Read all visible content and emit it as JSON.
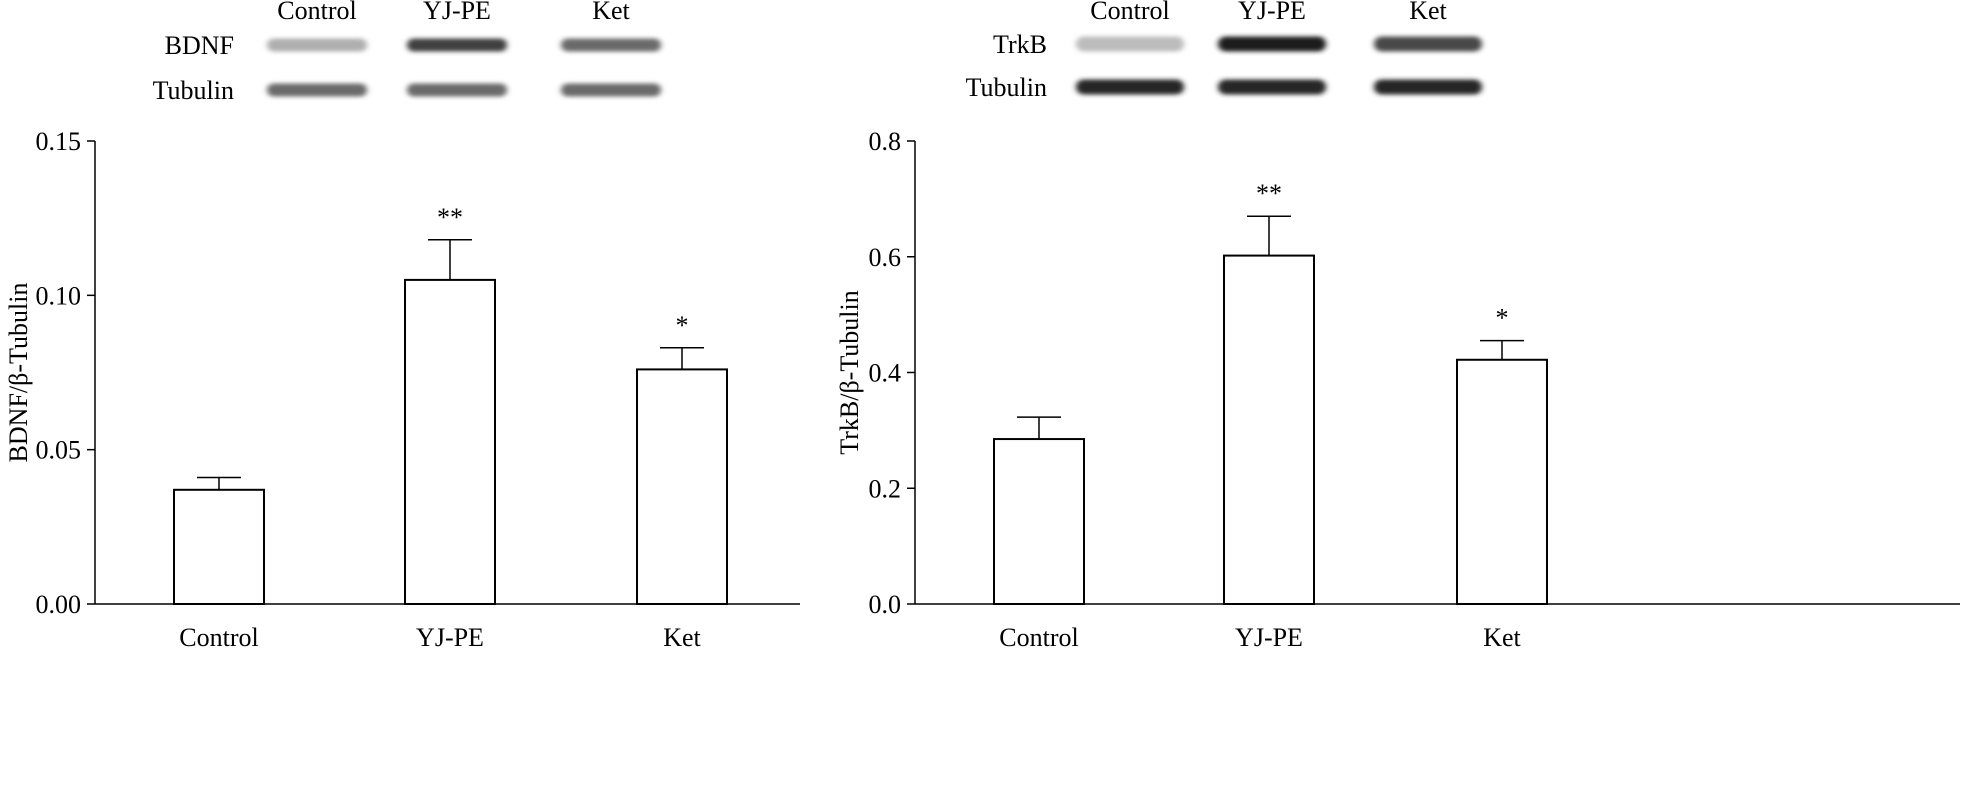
{
  "chart_data": [
    {
      "type": "bar",
      "blot": {
        "lane_labels": [
          "Control",
          "YJ-PE",
          "Ket"
        ],
        "row_labels": [
          "BDNF",
          "Tubulin"
        ],
        "intensity": [
          [
            0.28,
            0.8,
            0.6
          ],
          [
            0.6,
            0.6,
            0.6
          ]
        ]
      },
      "categories": [
        "Control",
        "YJ-PE",
        "Ket"
      ],
      "values": [
        0.037,
        0.105,
        0.076
      ],
      "error": [
        0.004,
        0.013,
        0.007
      ],
      "significance": [
        "",
        "**",
        "*"
      ],
      "ylabel": "BDNF/β-Tubulin",
      "ylim": [
        0,
        0.15
      ],
      "yticks": [
        "0.00",
        "0.05",
        "0.10",
        "0.15"
      ],
      "grid": false,
      "bar_color": "#ffffff",
      "line_color": "#000000"
    },
    {
      "type": "bar",
      "blot": {
        "lane_labels": [
          "Control",
          "YJ-PE",
          "Ket"
        ],
        "row_labels": [
          "TrkB",
          "Tubulin"
        ],
        "intensity": [
          [
            0.22,
            0.95,
            0.75
          ],
          [
            0.92,
            0.92,
            0.92
          ]
        ]
      },
      "categories": [
        "Control",
        "YJ-PE",
        "Ket"
      ],
      "values": [
        0.285,
        0.602,
        0.422
      ],
      "error": [
        0.038,
        0.068,
        0.033
      ],
      "significance": [
        "",
        "**",
        "*"
      ],
      "ylabel": "TrkB/β-Tubulin",
      "ylim": [
        0,
        0.8
      ],
      "yticks": [
        "0.0",
        "0.2",
        "0.4",
        "0.6",
        "0.8"
      ],
      "grid": false,
      "bar_color": "#ffffff",
      "line_color": "#000000"
    }
  ]
}
